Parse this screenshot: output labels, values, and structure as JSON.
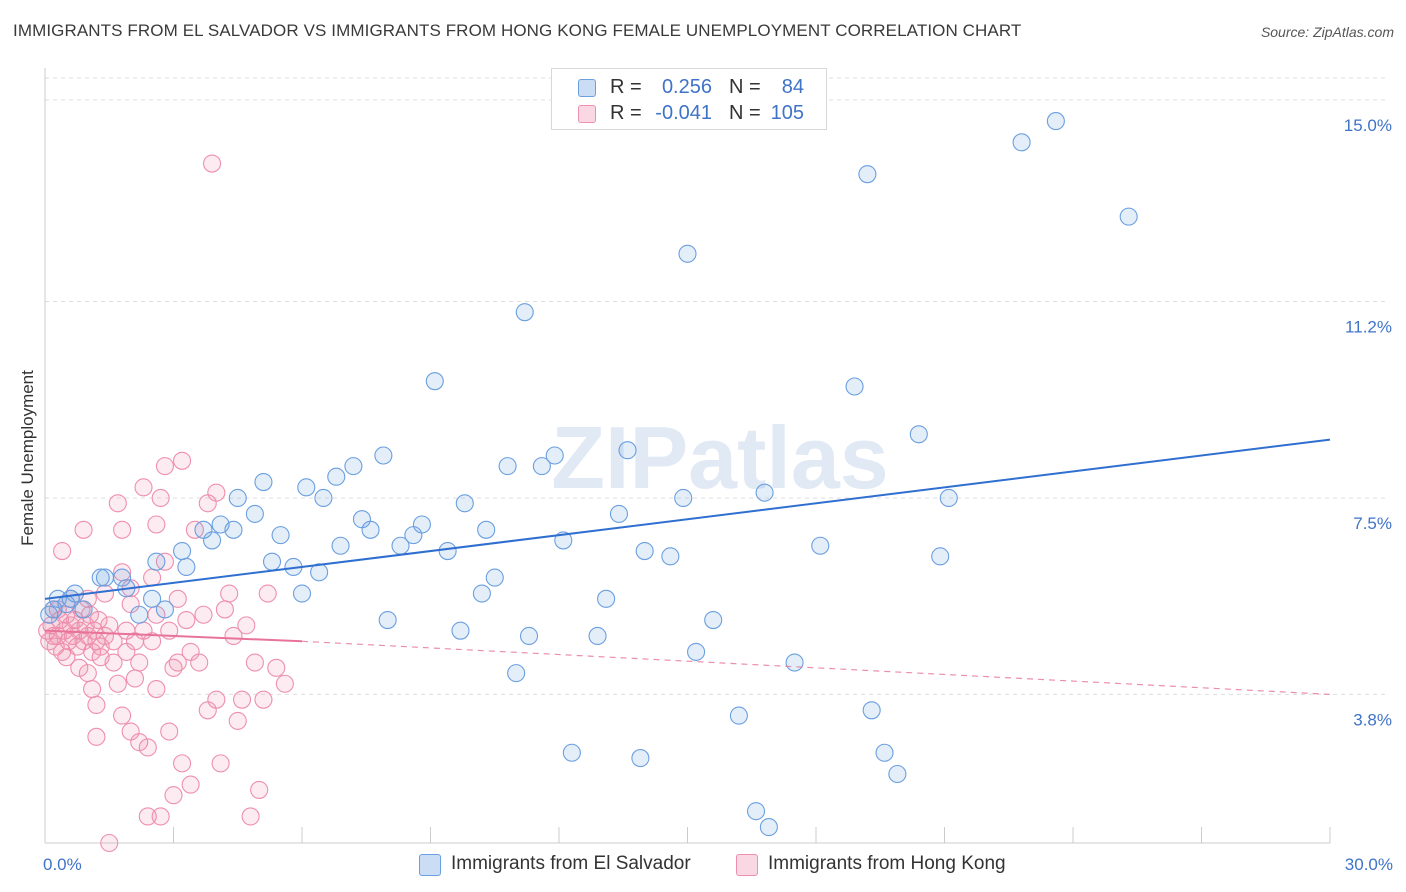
{
  "title": "IMMIGRANTS FROM EL SALVADOR VS IMMIGRANTS FROM HONG KONG FEMALE UNEMPLOYMENT CORRELATION CHART",
  "source": "Source: ZipAtlas.com",
  "watermark": "ZIPatlas",
  "colors": {
    "blue": "#6a9fe0",
    "blue_fill": "rgba(106,159,224,0.18)",
    "blue_line": "#2f6fd0",
    "pink": "#ee8fae",
    "pink_fill": "rgba(238,143,174,0.18)",
    "pink_line": "#e8739a",
    "tick_text": "#3f73c8",
    "grid": "#dddddd"
  },
  "legend_top": {
    "rows": [
      {
        "r_label": "R =",
        "r_value": "0.256",
        "n_label": "N =",
        "n_value": "84"
      },
      {
        "r_label": "R =",
        "r_value": "-0.041",
        "n_label": "N =",
        "n_value": "105"
      }
    ]
  },
  "legend_bottom": [
    "Immigrants from El Salvador",
    "Immigrants from Hong Kong"
  ],
  "chart_data": {
    "type": "scatter",
    "title": "IMMIGRANTS FROM EL SALVADOR VS IMMIGRANTS FROM HONG KONG FEMALE UNEMPLOYMENT CORRELATION CHART",
    "xlabel": "",
    "ylabel": "Female Unemployment",
    "xlim": [
      0,
      30
    ],
    "ylim": [
      1.0,
      15.6
    ],
    "x_tick_labels": [
      "0.0%",
      "30.0%"
    ],
    "y_ticks": [
      3.8,
      7.5,
      11.2,
      15.0
    ],
    "y_tick_labels": [
      "3.8%",
      "7.5%",
      "11.2%",
      "15.0%"
    ],
    "grid": true,
    "legend_position": "top-center",
    "series": [
      {
        "name": "Immigrants from El Salvador",
        "color": "blue",
        "trend": {
          "x": [
            0,
            30
          ],
          "y": [
            5.6,
            8.6
          ],
          "style": "solid"
        },
        "points": [
          [
            0.1,
            5.3
          ],
          [
            0.2,
            5.4
          ],
          [
            0.3,
            5.6
          ],
          [
            0.5,
            5.5
          ],
          [
            0.7,
            5.7
          ],
          [
            0.9,
            5.4
          ],
          [
            1.3,
            6.0
          ],
          [
            1.4,
            6.0
          ],
          [
            1.8,
            6.0
          ],
          [
            1.9,
            5.8
          ],
          [
            2.2,
            5.3
          ],
          [
            2.5,
            5.6
          ],
          [
            2.6,
            6.3
          ],
          [
            2.8,
            5.4
          ],
          [
            3.2,
            6.5
          ],
          [
            3.3,
            6.2
          ],
          [
            3.7,
            6.9
          ],
          [
            3.9,
            6.7
          ],
          [
            4.1,
            7.0
          ],
          [
            4.4,
            6.9
          ],
          [
            4.5,
            7.5
          ],
          [
            4.9,
            7.2
          ],
          [
            5.1,
            7.8
          ],
          [
            5.3,
            6.3
          ],
          [
            5.5,
            6.8
          ],
          [
            5.8,
            6.2
          ],
          [
            6.0,
            5.7
          ],
          [
            6.1,
            7.7
          ],
          [
            6.4,
            6.1
          ],
          [
            6.5,
            7.5
          ],
          [
            6.8,
            7.9
          ],
          [
            6.9,
            6.6
          ],
          [
            7.2,
            8.1
          ],
          [
            7.4,
            7.1
          ],
          [
            7.6,
            6.9
          ],
          [
            7.9,
            8.3
          ],
          [
            8.0,
            5.2
          ],
          [
            8.3,
            6.6
          ],
          [
            8.6,
            6.8
          ],
          [
            8.8,
            7.0
          ],
          [
            9.1,
            9.7
          ],
          [
            9.4,
            6.5
          ],
          [
            9.7,
            5.0
          ],
          [
            9.8,
            7.4
          ],
          [
            10.2,
            5.7
          ],
          [
            10.3,
            6.9
          ],
          [
            10.5,
            6.0
          ],
          [
            10.8,
            8.1
          ],
          [
            11.0,
            4.2
          ],
          [
            11.2,
            11.0
          ],
          [
            11.3,
            4.9
          ],
          [
            11.6,
            8.1
          ],
          [
            11.9,
            8.3
          ],
          [
            12.1,
            6.7
          ],
          [
            12.3,
            2.7
          ],
          [
            12.9,
            4.9
          ],
          [
            13.1,
            5.6
          ],
          [
            13.4,
            7.2
          ],
          [
            13.6,
            8.4
          ],
          [
            13.9,
            2.6
          ],
          [
            14.0,
            6.5
          ],
          [
            14.6,
            6.4
          ],
          [
            14.9,
            7.5
          ],
          [
            15.0,
            12.1
          ],
          [
            15.2,
            4.6
          ],
          [
            15.6,
            5.2
          ],
          [
            16.2,
            3.4
          ],
          [
            16.6,
            1.6
          ],
          [
            16.8,
            7.6
          ],
          [
            16.9,
            1.3
          ],
          [
            17.5,
            4.4
          ],
          [
            18.1,
            6.6
          ],
          [
            18.9,
            9.6
          ],
          [
            19.2,
            13.6
          ],
          [
            19.3,
            3.5
          ],
          [
            19.6,
            2.7
          ],
          [
            19.9,
            2.3
          ],
          [
            20.4,
            8.7
          ],
          [
            20.9,
            6.4
          ],
          [
            21.1,
            7.5
          ],
          [
            22.8,
            14.2
          ],
          [
            23.6,
            14.6
          ],
          [
            25.3,
            12.8
          ],
          [
            0.6,
            5.6
          ]
        ]
      },
      {
        "name": "Immigrants from Hong Kong",
        "color": "pink",
        "trend": {
          "x": [
            0,
            6
          ],
          "y": [
            5.0,
            4.8
          ],
          "style": "solid",
          "dashed_extension": {
            "x": [
              6,
              30
            ],
            "y": [
              4.8,
              3.8
            ]
          }
        },
        "points": [
          [
            0.05,
            5.0
          ],
          [
            0.1,
            4.8
          ],
          [
            0.15,
            5.1
          ],
          [
            0.2,
            5.4
          ],
          [
            0.25,
            4.7
          ],
          [
            0.3,
            4.9
          ],
          [
            0.35,
            5.2
          ],
          [
            0.4,
            4.6
          ],
          [
            0.45,
            5.0
          ],
          [
            0.5,
            5.3
          ],
          [
            0.55,
            4.8
          ],
          [
            0.6,
            5.1
          ],
          [
            0.65,
            4.9
          ],
          [
            0.7,
            5.2
          ],
          [
            0.75,
            4.7
          ],
          [
            0.8,
            5.0
          ],
          [
            0.85,
            5.4
          ],
          [
            0.9,
            4.8
          ],
          [
            0.95,
            5.1
          ],
          [
            1.0,
            4.9
          ],
          [
            1.05,
            5.3
          ],
          [
            1.1,
            4.6
          ],
          [
            1.15,
            5.0
          ],
          [
            1.2,
            4.8
          ],
          [
            1.25,
            5.2
          ],
          [
            1.3,
            4.7
          ],
          [
            0.4,
            6.5
          ],
          [
            0.9,
            6.9
          ],
          [
            1.0,
            4.2
          ],
          [
            1.1,
            3.9
          ],
          [
            1.2,
            3.6
          ],
          [
            1.3,
            4.5
          ],
          [
            1.4,
            4.9
          ],
          [
            1.5,
            5.1
          ],
          [
            1.6,
            4.4
          ],
          [
            1.7,
            7.4
          ],
          [
            1.8,
            3.4
          ],
          [
            1.8,
            6.9
          ],
          [
            1.9,
            4.6
          ],
          [
            2.0,
            3.1
          ],
          [
            2.0,
            5.5
          ],
          [
            2.1,
            4.8
          ],
          [
            2.2,
            2.9
          ],
          [
            2.2,
            4.4
          ],
          [
            2.3,
            5.0
          ],
          [
            2.3,
            7.7
          ],
          [
            2.4,
            2.8
          ],
          [
            2.5,
            4.8
          ],
          [
            2.5,
            6.0
          ],
          [
            2.6,
            3.9
          ],
          [
            2.6,
            5.3
          ],
          [
            2.7,
            1.5
          ],
          [
            2.7,
            7.5
          ],
          [
            2.8,
            6.3
          ],
          [
            2.8,
            8.1
          ],
          [
            2.9,
            5.0
          ],
          [
            3.0,
            1.9
          ],
          [
            3.0,
            4.3
          ],
          [
            3.1,
            4.4
          ],
          [
            3.1,
            5.6
          ],
          [
            3.2,
            8.2
          ],
          [
            3.2,
            2.5
          ],
          [
            3.3,
            5.2
          ],
          [
            3.4,
            4.6
          ],
          [
            3.5,
            6.9
          ],
          [
            3.6,
            4.4
          ],
          [
            3.7,
            5.3
          ],
          [
            3.8,
            3.5
          ],
          [
            3.8,
            7.4
          ],
          [
            3.9,
            13.8
          ],
          [
            4.0,
            3.7
          ],
          [
            4.0,
            7.6
          ],
          [
            4.1,
            2.5
          ],
          [
            4.2,
            5.4
          ],
          [
            4.3,
            5.7
          ],
          [
            4.4,
            4.9
          ],
          [
            4.5,
            3.3
          ],
          [
            4.6,
            3.7
          ],
          [
            4.7,
            5.1
          ],
          [
            4.8,
            1.5
          ],
          [
            4.9,
            4.4
          ],
          [
            5.0,
            2.0
          ],
          [
            5.1,
            3.7
          ],
          [
            5.2,
            5.7
          ],
          [
            5.4,
            4.3
          ],
          [
            5.6,
            4.0
          ],
          [
            1.5,
            1.0
          ],
          [
            2.4,
            1.5
          ],
          [
            0.6,
            5.6
          ],
          [
            1.4,
            5.7
          ],
          [
            0.3,
            5.4
          ],
          [
            1.9,
            5.0
          ],
          [
            2.1,
            4.1
          ],
          [
            1.6,
            4.8
          ],
          [
            1.7,
            4.0
          ],
          [
            0.8,
            4.3
          ],
          [
            1.2,
            3.0
          ],
          [
            2.9,
            3.1
          ],
          [
            3.4,
            2.1
          ],
          [
            1.8,
            6.1
          ],
          [
            2.6,
            7.0
          ],
          [
            2.0,
            5.8
          ],
          [
            0.5,
            4.5
          ],
          [
            0.2,
            4.9
          ],
          [
            1.0,
            5.6
          ]
        ]
      }
    ]
  }
}
